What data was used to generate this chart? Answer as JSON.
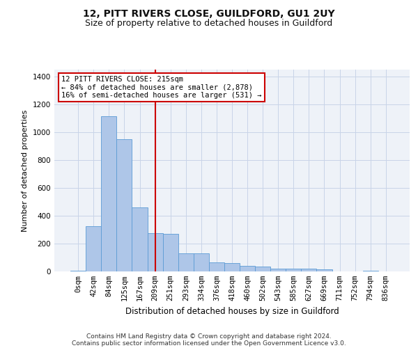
{
  "title": "12, PITT RIVERS CLOSE, GUILDFORD, GU1 2UY",
  "subtitle": "Size of property relative to detached houses in Guildford",
  "xlabel": "Distribution of detached houses by size in Guildford",
  "ylabel": "Number of detached properties",
  "categories": [
    "0sqm",
    "42sqm",
    "84sqm",
    "125sqm",
    "167sqm",
    "209sqm",
    "251sqm",
    "293sqm",
    "334sqm",
    "376sqm",
    "418sqm",
    "460sqm",
    "502sqm",
    "543sqm",
    "585sqm",
    "627sqm",
    "669sqm",
    "711sqm",
    "752sqm",
    "794sqm",
    "836sqm"
  ],
  "values": [
    5,
    325,
    1115,
    950,
    460,
    275,
    270,
    130,
    130,
    65,
    60,
    40,
    35,
    20,
    20,
    20,
    15,
    0,
    0,
    5,
    0
  ],
  "bar_color": "#aec6e8",
  "bar_edge_color": "#5b9bd5",
  "grid_color": "#c8d4e8",
  "background_color": "#eef2f8",
  "vline_x": 5,
  "vline_color": "#cc0000",
  "annotation_text": "12 PITT RIVERS CLOSE: 215sqm\n← 84% of detached houses are smaller (2,878)\n16% of semi-detached houses are larger (531) →",
  "annotation_box_color": "#cc0000",
  "ylim": [
    0,
    1450
  ],
  "yticks": [
    0,
    200,
    400,
    600,
    800,
    1000,
    1200,
    1400
  ],
  "footer_line1": "Contains HM Land Registry data © Crown copyright and database right 2024.",
  "footer_line2": "Contains public sector information licensed under the Open Government Licence v3.0.",
  "title_fontsize": 10,
  "subtitle_fontsize": 9,
  "xlabel_fontsize": 8.5,
  "ylabel_fontsize": 8,
  "tick_fontsize": 7.5,
  "footer_fontsize": 6.5,
  "ann_fontsize": 7.5
}
